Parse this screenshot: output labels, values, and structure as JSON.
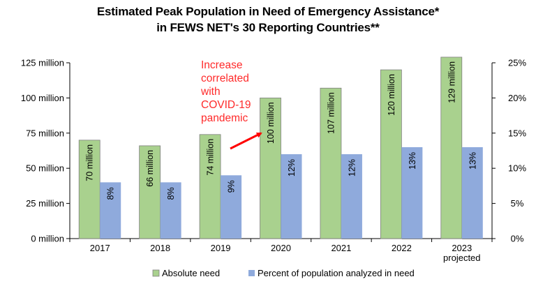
{
  "chart_data": {
    "type": "bar",
    "title": "Estimated Peak Population in Need of Emergency Assistance*",
    "subtitle": "in FEWS NET's 30 Reporting Countries**",
    "categories": [
      {
        "line1": "2017",
        "line2": ""
      },
      {
        "line1": "2018",
        "line2": ""
      },
      {
        "line1": "2019",
        "line2": ""
      },
      {
        "line1": "2020",
        "line2": ""
      },
      {
        "line1": "2021",
        "line2": ""
      },
      {
        "line1": "2022",
        "line2": ""
      },
      {
        "line1": "2023",
        "line2": "projected"
      }
    ],
    "series": [
      {
        "name": "Absolute need",
        "axis": "left",
        "color": "#a9d18e",
        "values": [
          70,
          66,
          74,
          100,
          107,
          120,
          129
        ],
        "labels": [
          "70 million",
          "66 million",
          "74 million",
          "100 million",
          "107 million",
          "120 million",
          "129 million"
        ]
      },
      {
        "name": "Percent of population analyzed in need",
        "axis": "right",
        "color": "#8faadc",
        "values": [
          8,
          8,
          9,
          12,
          12,
          13,
          13
        ],
        "labels": [
          "8%",
          "8%",
          "9%",
          "12%",
          "12%",
          "13%",
          "13%"
        ]
      }
    ],
    "y_left": {
      "ylim": [
        0,
        125
      ],
      "ticks": [
        0,
        25,
        50,
        75,
        100,
        125
      ],
      "tick_labels": [
        "0 million",
        "25 million",
        "50 million",
        "75 million",
        "100 million",
        "125 million"
      ]
    },
    "y_right": {
      "ylim": [
        0,
        25
      ],
      "ticks": [
        0,
        5,
        10,
        15,
        20,
        25
      ],
      "tick_labels": [
        "0%",
        "5%",
        "10%",
        "15%",
        "20%",
        "25%"
      ]
    },
    "annotation": {
      "lines": [
        "Increase",
        "correlated",
        "with",
        "COVID-19",
        "pandemic"
      ],
      "color": "#ff2a2a",
      "points_to": "2020"
    },
    "grid": false,
    "legend_position": "bottom"
  }
}
